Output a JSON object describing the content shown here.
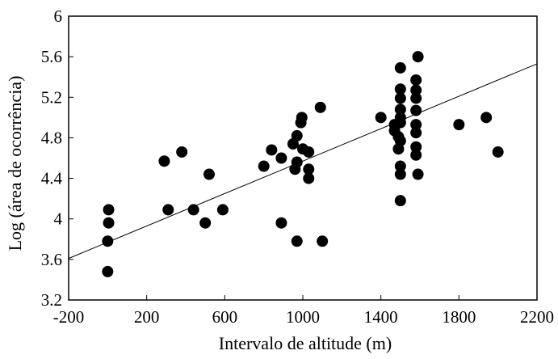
{
  "chart_data": {
    "type": "scatter",
    "title": "",
    "xlabel": "Intervalo de altitude (m)",
    "ylabel": "Log (área de ocorrência)",
    "xlim": [
      -200,
      2200
    ],
    "ylim": [
      3.2,
      6
    ],
    "xticks": [
      "-200",
      "200",
      "600",
      "1000",
      "1400",
      "1800",
      "2200"
    ],
    "yticks": [
      "3.2",
      "3.6",
      "4",
      "4.4",
      "4.8",
      "5.2",
      "5.6",
      "6"
    ],
    "grid": false,
    "legend": "none",
    "colors": {
      "points": "#000000",
      "line": "#000000",
      "frame": "#000000"
    },
    "trendline": {
      "x": [
        -200,
        2200
      ],
      "y": [
        3.61,
        5.53
      ]
    },
    "points": [
      {
        "x": 0,
        "y": 3.48
      },
      {
        "x": 0,
        "y": 3.78
      },
      {
        "x": 5,
        "y": 3.96
      },
      {
        "x": 5,
        "y": 4.09
      },
      {
        "x": 290,
        "y": 4.57
      },
      {
        "x": 310,
        "y": 4.09
      },
      {
        "x": 380,
        "y": 4.66
      },
      {
        "x": 440,
        "y": 4.09
      },
      {
        "x": 500,
        "y": 3.96
      },
      {
        "x": 520,
        "y": 4.44
      },
      {
        "x": 590,
        "y": 4.09
      },
      {
        "x": 800,
        "y": 4.52
      },
      {
        "x": 840,
        "y": 4.68
      },
      {
        "x": 890,
        "y": 4.6
      },
      {
        "x": 890,
        "y": 3.96
      },
      {
        "x": 950,
        "y": 4.74
      },
      {
        "x": 960,
        "y": 4.49
      },
      {
        "x": 970,
        "y": 4.56
      },
      {
        "x": 970,
        "y": 3.78
      },
      {
        "x": 970,
        "y": 4.82
      },
      {
        "x": 990,
        "y": 4.95
      },
      {
        "x": 995,
        "y": 5.0
      },
      {
        "x": 1000,
        "y": 4.69
      },
      {
        "x": 1030,
        "y": 4.66
      },
      {
        "x": 1030,
        "y": 4.49
      },
      {
        "x": 1030,
        "y": 4.4
      },
      {
        "x": 1090,
        "y": 5.1
      },
      {
        "x": 1100,
        "y": 3.78
      },
      {
        "x": 1400,
        "y": 5.0
      },
      {
        "x": 1470,
        "y": 4.93
      },
      {
        "x": 1470,
        "y": 4.87
      },
      {
        "x": 1490,
        "y": 4.69
      },
      {
        "x": 1490,
        "y": 4.81
      },
      {
        "x": 1500,
        "y": 5.49
      },
      {
        "x": 1500,
        "y": 5.28
      },
      {
        "x": 1500,
        "y": 5.19
      },
      {
        "x": 1500,
        "y": 5.08
      },
      {
        "x": 1500,
        "y": 5.0
      },
      {
        "x": 1500,
        "y": 4.95
      },
      {
        "x": 1500,
        "y": 4.77
      },
      {
        "x": 1500,
        "y": 4.52
      },
      {
        "x": 1500,
        "y": 4.44
      },
      {
        "x": 1500,
        "y": 4.18
      },
      {
        "x": 1580,
        "y": 5.37
      },
      {
        "x": 1580,
        "y": 5.27
      },
      {
        "x": 1580,
        "y": 5.19
      },
      {
        "x": 1580,
        "y": 5.07
      },
      {
        "x": 1580,
        "y": 4.93
      },
      {
        "x": 1580,
        "y": 4.85
      },
      {
        "x": 1580,
        "y": 4.71
      },
      {
        "x": 1580,
        "y": 4.63
      },
      {
        "x": 1590,
        "y": 5.6
      },
      {
        "x": 1590,
        "y": 4.44
      },
      {
        "x": 1800,
        "y": 4.93
      },
      {
        "x": 1940,
        "y": 5.0
      },
      {
        "x": 2000,
        "y": 4.66
      }
    ]
  }
}
